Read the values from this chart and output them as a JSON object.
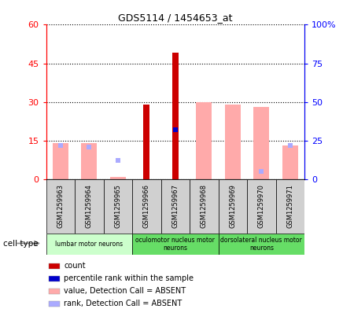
{
  "title": "GDS5114 / 1454653_at",
  "samples": [
    "GSM1259963",
    "GSM1259964",
    "GSM1259965",
    "GSM1259966",
    "GSM1259967",
    "GSM1259968",
    "GSM1259969",
    "GSM1259970",
    "GSM1259971"
  ],
  "count_values": [
    0,
    0,
    0,
    29,
    49,
    0,
    0,
    0,
    0
  ],
  "rank_values": [
    0,
    0,
    0,
    0,
    32,
    0,
    0,
    0,
    0
  ],
  "absent_value": [
    14,
    14,
    1,
    0,
    0,
    30,
    29,
    28,
    13
  ],
  "absent_rank": [
    22,
    21,
    12,
    0,
    0,
    0,
    0,
    5,
    22
  ],
  "ylim_left": [
    0,
    60
  ],
  "ylim_right": [
    0,
    100
  ],
  "yticks_left": [
    0,
    15,
    30,
    45,
    60
  ],
  "yticks_right": [
    0,
    25,
    50,
    75,
    100
  ],
  "ytick_labels_left": [
    "0",
    "15",
    "30",
    "45",
    "60"
  ],
  "ytick_labels_right": [
    "0",
    "25",
    "50",
    "75",
    "100%"
  ],
  "cell_groups": [
    {
      "label": "lumbar motor neurons",
      "start": 0,
      "end": 3,
      "color": "#ccffcc"
    },
    {
      "label": "oculomotor nucleus motor\nneurons",
      "start": 3,
      "end": 6,
      "color": "#66dd66"
    },
    {
      "label": "dorsolateral nucleus motor\nneurons",
      "start": 6,
      "end": 9,
      "color": "#66dd66"
    }
  ],
  "color_count": "#cc0000",
  "color_rank": "#0000cc",
  "color_absent_value": "#ffaaaa",
  "color_absent_rank": "#aaaaff",
  "legend_items": [
    {
      "label": "count",
      "color": "#cc0000"
    },
    {
      "label": "percentile rank within the sample",
      "color": "#0000cc"
    },
    {
      "label": "value, Detection Call = ABSENT",
      "color": "#ffaaaa"
    },
    {
      "label": "rank, Detection Call = ABSENT",
      "color": "#aaaaff"
    }
  ],
  "cell_type_label": "cell type"
}
